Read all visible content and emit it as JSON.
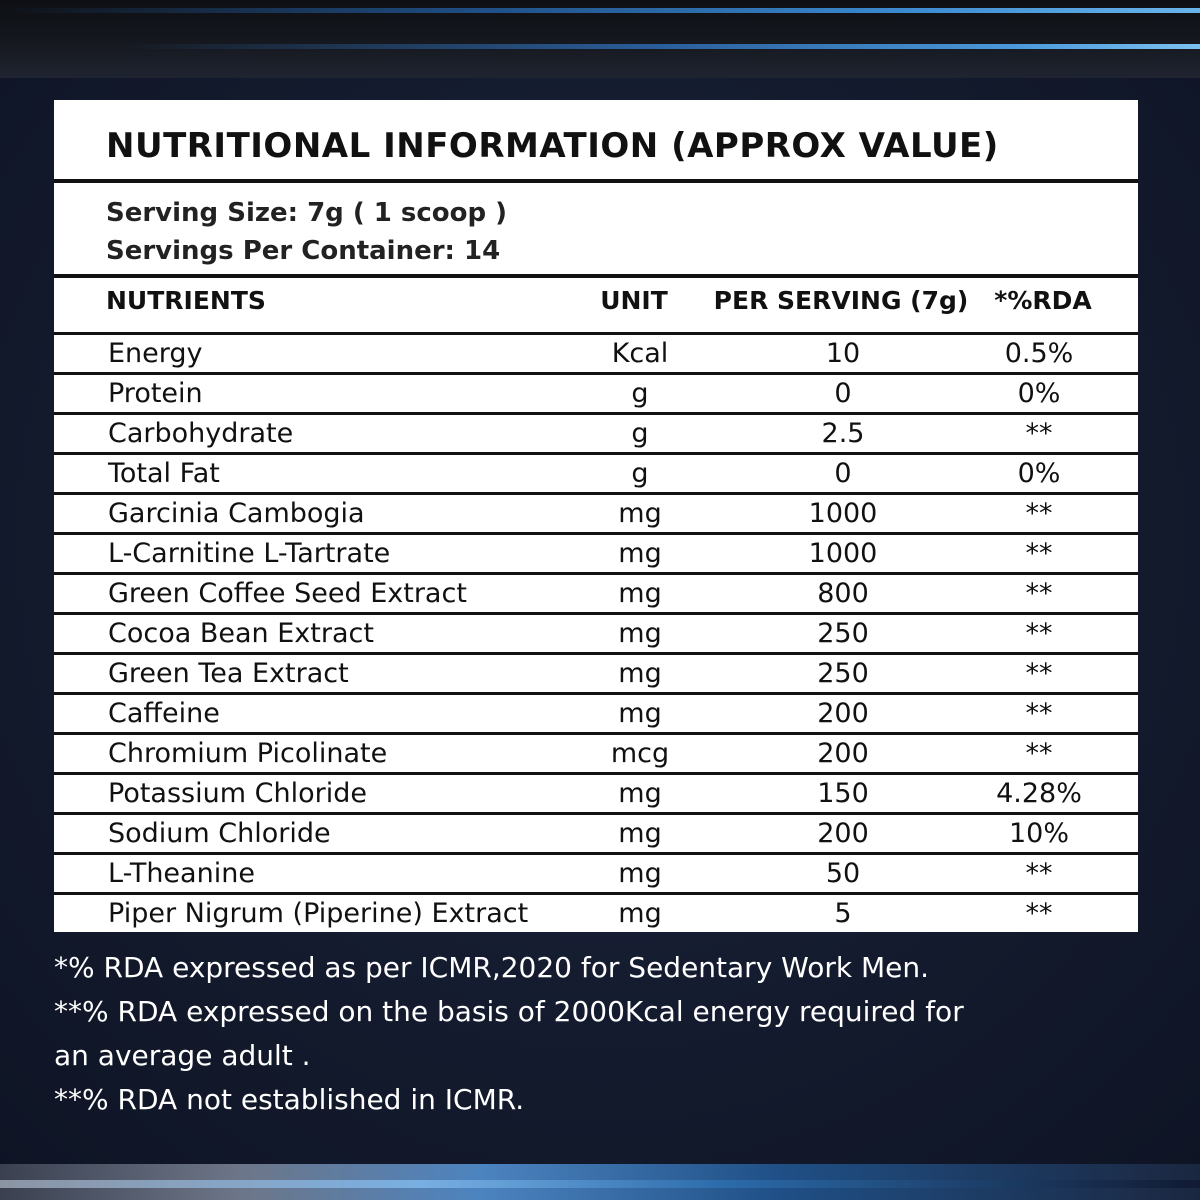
{
  "title": "NUTRITIONAL INFORMATION (APPROX VALUE)",
  "serving_size": "Serving Size: 7g  ( 1 scoop )",
  "servings_per_container": "Servings Per Container: 14",
  "headers": {
    "nutrients": "NUTRIENTS",
    "unit": "UNIT",
    "per_serving": "PER SERVING (7g)",
    "rda": "*%RDA"
  },
  "rows": [
    {
      "name": "Energy",
      "unit": "Kcal",
      "per": "10",
      "rda": "0.5%"
    },
    {
      "name": "Protein",
      "unit": "g",
      "per": "0",
      "rda": "0%"
    },
    {
      "name": "Carbohydrate",
      "unit": "g",
      "per": "2.5",
      "rda": "**"
    },
    {
      "name": "Total Fat",
      "unit": "g",
      "per": "0",
      "rda": "0%"
    },
    {
      "name": "Garcinia Cambogia",
      "unit": "mg",
      "per": "1000",
      "rda": "**"
    },
    {
      "name": "L-Carnitine L-Tartrate",
      "unit": "mg",
      "per": "1000",
      "rda": "**"
    },
    {
      "name": "Green Coffee Seed Extract",
      "unit": "mg",
      "per": "800",
      "rda": "**"
    },
    {
      "name": "Cocoa Bean Extract",
      "unit": "mg",
      "per": "250",
      "rda": "**"
    },
    {
      "name": "Green Tea Extract",
      "unit": "mg",
      "per": "250",
      "rda": "**"
    },
    {
      "name": "Caffeine",
      "unit": "mg",
      "per": "200",
      "rda": "**"
    },
    {
      "name": "Chromium Picolinate",
      "unit": "mcg",
      "per": "200",
      "rda": "**"
    },
    {
      "name": "Potassium Chloride",
      "unit": "mg",
      "per": "150",
      "rda": "4.28%"
    },
    {
      "name": "Sodium Chloride",
      "unit": "mg",
      "per": "200",
      "rda": "10%"
    },
    {
      "name": "L-Theanine",
      "unit": "mg",
      "per": "50",
      "rda": "**"
    },
    {
      "name": "Piper Nigrum (Piperine) Extract",
      "unit": "mg",
      "per": "5",
      "rda": "**"
    }
  ],
  "notes": [
    "*% RDA expressed as per ICMR,2020 for Sedentary Work Men.",
    "**% RDA expressed on the basis of 2000Kcal energy required for",
    "an average adult .",
    "**% RDA not established in ICMR."
  ],
  "colors": {
    "background": "#141b2e",
    "panel": "#ffffff",
    "text_dark": "#111111",
    "accent_blue": "#3b8ad0"
  }
}
